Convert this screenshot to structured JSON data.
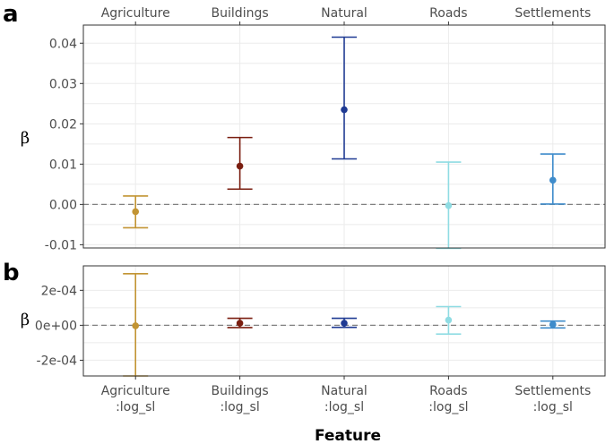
{
  "figure": {
    "xlabel": "Feature",
    "ylabel": "β"
  },
  "chart_data": [
    {
      "panel": "a",
      "type": "errorbar",
      "categories": [
        "Agriculture",
        "Buildings",
        "Natural",
        "Roads",
        "Settlements"
      ],
      "category_position": "top",
      "estimate": [
        -0.0018,
        0.0095,
        0.0235,
        -0.0003,
        0.006
      ],
      "lower": [
        -0.0058,
        0.0038,
        0.0113,
        -0.0109,
        0.0001
      ],
      "upper": [
        0.0021,
        0.0166,
        0.0415,
        0.0105,
        0.0125
      ],
      "colors": [
        "#C29433",
        "#7A1E10",
        "#1F3A93",
        "#8FDCE3",
        "#3F8CCB"
      ],
      "ylim": [
        -0.0108,
        0.0445
      ],
      "yticks": [
        -0.01,
        0.0,
        0.01,
        0.02,
        0.03,
        0.04
      ],
      "ytick_labels": [
        "-0.01",
        "0.00",
        "0.01",
        "0.02",
        "0.03",
        "0.04"
      ],
      "reference_line": 0,
      "ylabel": "β",
      "grid": true
    },
    {
      "panel": "b",
      "type": "errorbar",
      "categories": [
        "Agriculture\n:log_sl",
        "Buildings\n:log_sl",
        "Natural\n:log_sl",
        "Roads\n:log_sl",
        "Settlements\n:log_sl"
      ],
      "category_position": "bottom",
      "estimate": [
        -3e-06,
        1.2e-05,
        1.2e-05,
        3e-05,
        5e-06
      ],
      "lower": [
        -0.00029,
        -1.3e-05,
        -1.2e-05,
        -5e-05,
        -1.5e-05
      ],
      "upper": [
        0.000295,
        4e-05,
        4e-05,
        0.000107,
        2.4e-05
      ],
      "colors": [
        "#C29433",
        "#7A1E10",
        "#1F3A93",
        "#8FDCE3",
        "#3F8CCB"
      ],
      "ylim": [
        -0.00029,
        0.00034
      ],
      "yticks": [
        -0.0002,
        0.0,
        0.0002
      ],
      "ytick_labels": [
        "-2e-04",
        "0e+00",
        "2e-04"
      ],
      "reference_line": 0,
      "ylabel": "β",
      "grid": true
    }
  ]
}
